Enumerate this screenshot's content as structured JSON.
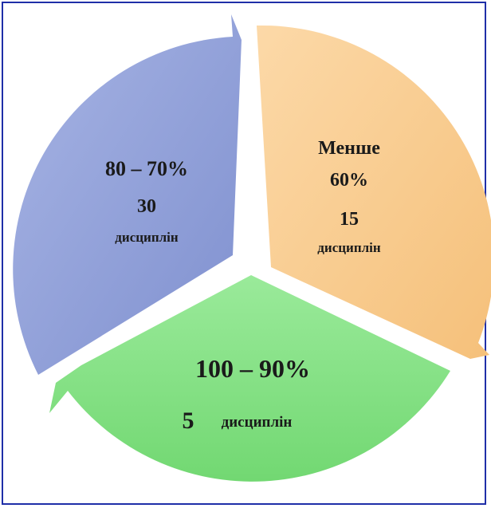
{
  "diagram": {
    "segments": [
      {
        "id": "blue",
        "line1": "80 – 70%",
        "line2": "30",
        "line3": "дисциплін",
        "color": "#8f9fd6",
        "color_light": "#aab7e6"
      },
      {
        "id": "orange",
        "line1": "Менше",
        "line2": "60%",
        "line3": "15",
        "line4": "дисциплін",
        "color": "#f7c884",
        "color_light": "#fbd9a6"
      },
      {
        "id": "green",
        "line1": "100 – 90%",
        "line2_number": "5",
        "line2_word": "дисциплін",
        "color": "#7fe07f",
        "color_light": "#a4eda4"
      }
    ],
    "frame_color": "#1f2fa8"
  }
}
